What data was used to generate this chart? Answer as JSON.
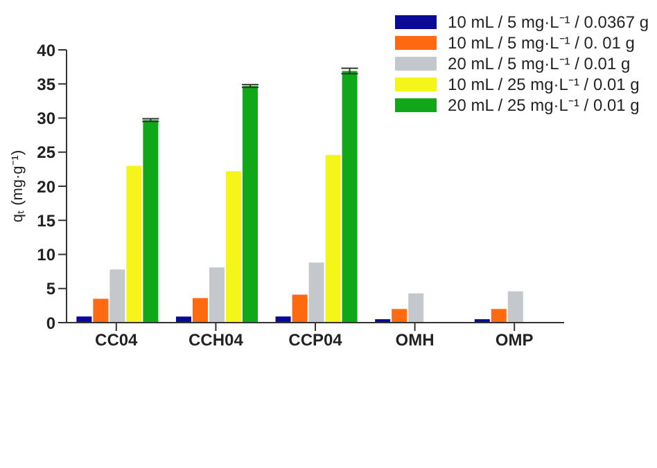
{
  "chart_data": {
    "type": "bar",
    "ylabel": "qₜ (mg·g⁻¹)",
    "categories": [
      "CC04",
      "CCH04",
      "CCP04",
      "OMH",
      "OMP"
    ],
    "series": [
      {
        "name": "10 mL / 5 mg·L⁻¹ / 0.0367 g",
        "color": "#0a0a96",
        "values": [
          0.9,
          0.9,
          0.9,
          0.5,
          0.5
        ]
      },
      {
        "name": "10 mL / 5 mg·L⁻¹ / 0. 01 g",
        "color": "#ff6a10",
        "values": [
          3.5,
          3.6,
          4.1,
          2.0,
          2.0
        ]
      },
      {
        "name": "20 mL / 5 mg·L⁻¹ / 0.01 g",
        "color": "#c4c8cc",
        "values": [
          7.8,
          8.1,
          8.8,
          4.3,
          4.6
        ]
      },
      {
        "name": "10 mL / 25 mg·L⁻¹ / 0.01 g",
        "color": "#f5f51a",
        "values": [
          23.0,
          22.2,
          24.6,
          null,
          null
        ]
      },
      {
        "name": "20 mL / 25 mg·L⁻¹ / 0.01 g",
        "color": "#10a818",
        "values": [
          29.7,
          34.7,
          36.9,
          null,
          null
        ],
        "errors": [
          0.2,
          0.2,
          0.4,
          null,
          null
        ]
      }
    ],
    "ylim": [
      0,
      40
    ],
    "yticks": [
      0,
      5,
      10,
      15,
      20,
      25,
      30,
      35,
      40
    ],
    "grid": false,
    "legend": "top right"
  }
}
